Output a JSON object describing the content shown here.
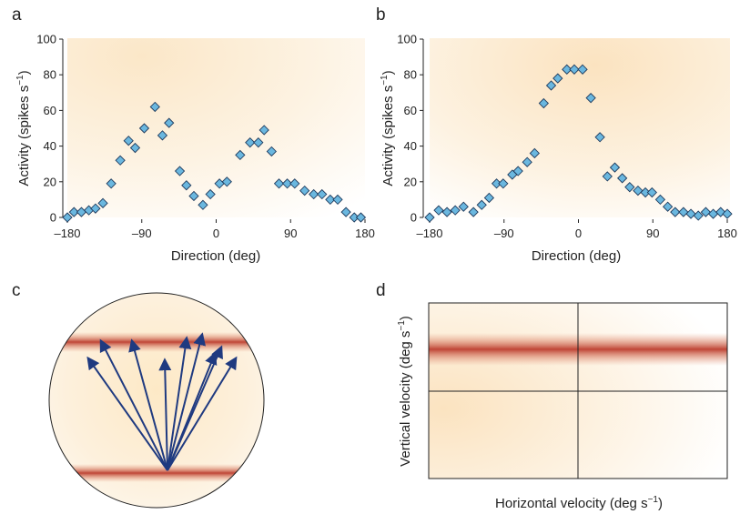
{
  "colors": {
    "marker_fill": "#6ab7df",
    "marker_stroke": "#1f3a5c",
    "arrow": "#1f3a80",
    "band": "#c0493a",
    "background_cream": "#fdf3e1"
  },
  "chart_data": [
    {
      "panel": "a",
      "type": "scatter",
      "xlabel": "Direction (deg)",
      "ylabel": "Activity (spikes s",
      "ylabel_sup": "−1",
      "ylabel_close": ")",
      "xlim": [
        -180,
        180
      ],
      "ylim": [
        0,
        100
      ],
      "xticks": [
        -180,
        -90,
        0,
        90,
        180
      ],
      "xtick_labels": [
        "–180",
        "–90",
        "0",
        "90",
        "180"
      ],
      "yticks": [
        0,
        20,
        40,
        60,
        80,
        100
      ],
      "ytick_labels": [
        "0",
        "20",
        "40",
        "60",
        "80",
        "100"
      ],
      "marker": "diamond",
      "points": [
        [
          -180,
          0
        ],
        [
          -172,
          3
        ],
        [
          -163,
          3
        ],
        [
          -154,
          4
        ],
        [
          -146,
          5
        ],
        [
          -137,
          8
        ],
        [
          -127,
          19
        ],
        [
          -116,
          32
        ],
        [
          -106,
          43
        ],
        [
          -98,
          39
        ],
        [
          -87,
          50
        ],
        [
          -74,
          62
        ],
        [
          -65,
          46
        ],
        [
          -57,
          53
        ],
        [
          -44,
          26
        ],
        [
          -36,
          18
        ],
        [
          -27,
          12
        ],
        [
          -16,
          7
        ],
        [
          -7,
          13
        ],
        [
          4,
          19
        ],
        [
          13,
          20
        ],
        [
          29,
          35
        ],
        [
          41,
          42
        ],
        [
          51,
          42
        ],
        [
          58,
          49
        ],
        [
          67,
          37
        ],
        [
          76,
          19
        ],
        [
          86,
          19
        ],
        [
          95,
          19
        ],
        [
          107,
          15
        ],
        [
          118,
          13
        ],
        [
          128,
          13
        ],
        [
          138,
          10
        ],
        [
          147,
          10
        ],
        [
          157,
          3
        ],
        [
          167,
          0
        ],
        [
          175,
          0
        ]
      ]
    },
    {
      "panel": "b",
      "type": "scatter",
      "xlabel": "Direction (deg)",
      "ylabel": "Activity (spikes s",
      "ylabel_sup": "−1",
      "ylabel_close": ")",
      "xlim": [
        -180,
        180
      ],
      "ylim": [
        0,
        100
      ],
      "xticks": [
        -180,
        -90,
        0,
        90,
        180
      ],
      "xtick_labels": [
        "–180",
        "–90",
        "0",
        "90",
        "180"
      ],
      "yticks": [
        0,
        20,
        40,
        60,
        80,
        100
      ],
      "ytick_labels": [
        "0",
        "20",
        "40",
        "60",
        "80",
        "100"
      ],
      "marker": "diamond",
      "points": [
        [
          -180,
          0
        ],
        [
          -169,
          4
        ],
        [
          -159,
          3
        ],
        [
          -149,
          4
        ],
        [
          -139,
          6
        ],
        [
          -127,
          3
        ],
        [
          -117,
          7
        ],
        [
          -108,
          11
        ],
        [
          -99,
          19
        ],
        [
          -91,
          19
        ],
        [
          -80,
          24
        ],
        [
          -73,
          26
        ],
        [
          -62,
          31
        ],
        [
          -53,
          36
        ],
        [
          -42,
          64
        ],
        [
          -33,
          74
        ],
        [
          -25,
          78
        ],
        [
          -14,
          83
        ],
        [
          -5,
          83
        ],
        [
          5,
          83
        ],
        [
          15,
          67
        ],
        [
          26,
          45
        ],
        [
          35,
          23
        ],
        [
          44,
          28
        ],
        [
          53,
          22
        ],
        [
          62,
          17
        ],
        [
          72,
          15
        ],
        [
          81,
          14
        ],
        [
          89,
          14
        ],
        [
          99,
          10
        ],
        [
          108,
          6
        ],
        [
          117,
          3
        ],
        [
          127,
          3
        ],
        [
          136,
          2
        ],
        [
          145,
          1
        ],
        [
          154,
          3
        ],
        [
          163,
          2
        ],
        [
          172,
          3
        ],
        [
          180,
          2
        ]
      ]
    }
  ],
  "panel_c": {
    "letter": "c",
    "arrow_count": 9
  },
  "panel_d": {
    "letter": "d",
    "xlabel": "Horizontal velocity (deg s",
    "xlabel_sup": "−1",
    "xlabel_close": ")",
    "ylabel": "Vertical velocity (deg s",
    "ylabel_sup": "−1",
    "ylabel_close": ")"
  }
}
